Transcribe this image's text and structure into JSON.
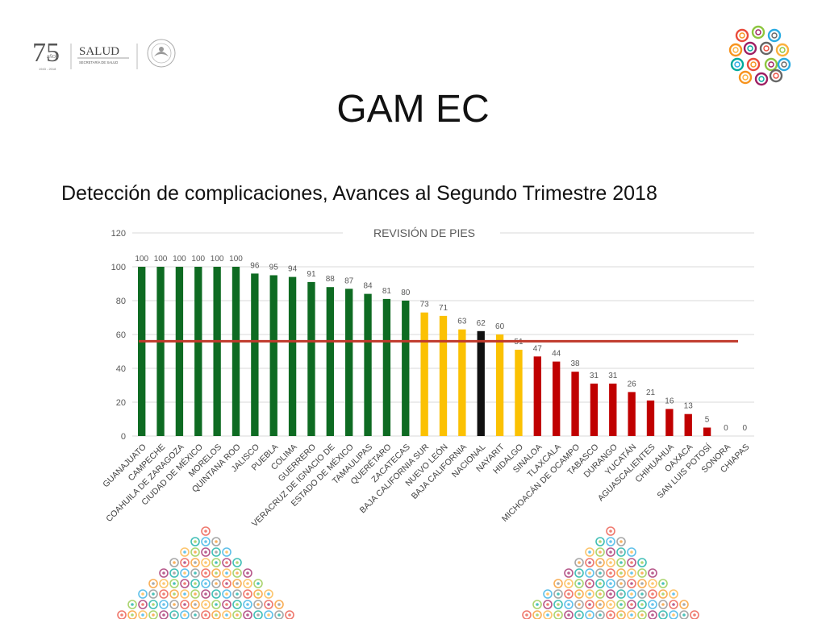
{
  "slide": {
    "title": "GAM EC",
    "subtitle": "Detección de complicaciones, Avances al Segundo Trimestre 2018"
  },
  "logo": {
    "anniv_number": "75",
    "anniv_word": "AÑOS",
    "anniv_years": "1943 - 2018",
    "brand": "SALUD",
    "brand_sub": "SECRETARÍA DE SALUD"
  },
  "colors": {
    "green": "#0e6b22",
    "yellow": "#fbc102",
    "black": "#111111",
    "red": "#c00000",
    "reference_line": "#c0392b",
    "gridline": "#d9d9d9",
    "axis_text": "#595959"
  },
  "chart_data": {
    "type": "bar",
    "title": "REVISIÓN DE PIES",
    "xlabel": "",
    "ylabel": "",
    "ylim": [
      0,
      120
    ],
    "yticks": [
      0,
      20,
      40,
      60,
      80,
      100,
      120
    ],
    "grid": true,
    "reference_line": 56,
    "categories": [
      "GUANAJUATO",
      "CAMPECHE",
      "COAHUILA DE ZARAGOZA",
      "CIUDAD DE MÉXICO",
      "MORELOS",
      "QUINTANA ROO",
      "JALISCO",
      "PUEBLA",
      "COLIMA",
      "GUERRERO",
      "VERACRUZ DE IGNACIO DE",
      "ESTADO DE MÉXICO",
      "TAMAULIPAS",
      "QUERÉTARO",
      "ZACATECAS",
      "BAJA CALIFORNIA SUR",
      "NUEVO LEÓN",
      "BAJA CALIFORNIA",
      "NACIONAL",
      "NAYARIT",
      "HIDALGO",
      "SINALOA",
      "TLAXCALA",
      "MICHOACÁN DE OCAMPO",
      "TABASCO",
      "DURANGO",
      "YUCATÁN",
      "AGUASCALIENTES",
      "CHIHUAHUA",
      "OAXACA",
      "SAN LUIS POTOSÍ",
      "SONORA",
      "CHIAPAS"
    ],
    "values": [
      100,
      100,
      100,
      100,
      100,
      100,
      96,
      95,
      94,
      91,
      88,
      87,
      84,
      81,
      80,
      73,
      71,
      63,
      62,
      60,
      51,
      47,
      44,
      38,
      31,
      31,
      26,
      21,
      16,
      13,
      5,
      0,
      0
    ],
    "bar_colors": [
      "green",
      "green",
      "green",
      "green",
      "green",
      "green",
      "green",
      "green",
      "green",
      "green",
      "green",
      "green",
      "green",
      "green",
      "green",
      "yellow",
      "yellow",
      "yellow",
      "black",
      "yellow",
      "yellow",
      "red",
      "red",
      "red",
      "red",
      "red",
      "red",
      "red",
      "red",
      "red",
      "red",
      "red",
      "red"
    ]
  }
}
